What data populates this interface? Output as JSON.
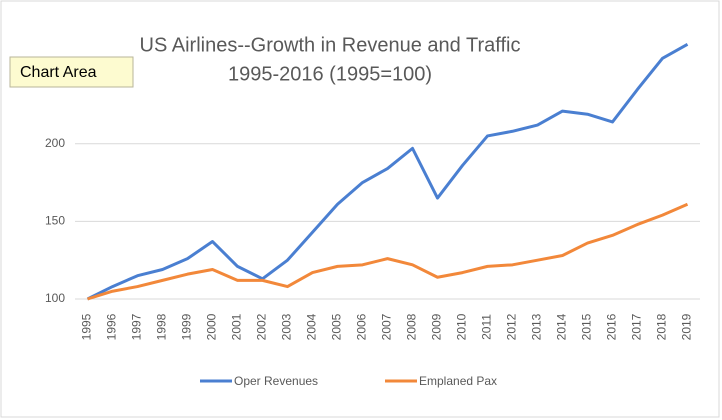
{
  "tooltip": "Chart Area",
  "chart_data": {
    "type": "line",
    "title": [
      "US Airlines--Growth in Revenue and Traffic",
      "1995-2016 (1995=100)"
    ],
    "categories": [
      "1995",
      "1996",
      "1997",
      "1998",
      "1999",
      "2000",
      "2001",
      "2002",
      "2003",
      "2004",
      "2005",
      "2006",
      "2007",
      "2008",
      "2009",
      "2010",
      "2011",
      "2012",
      "2013",
      "2014",
      "2015",
      "2016",
      "2017",
      "2018",
      "2019"
    ],
    "series": [
      {
        "name": "Oper Revenues",
        "color": "#4a7fd1",
        "values": [
          100,
          108,
          115,
          119,
          126,
          137,
          121,
          113,
          125,
          143,
          161,
          175,
          184,
          197,
          165,
          186,
          205,
          208,
          212,
          221,
          219,
          214,
          235,
          255,
          264
        ]
      },
      {
        "name": "Emplaned Pax",
        "color": "#f2883a",
        "values": [
          100,
          105,
          108,
          112,
          116,
          119,
          112,
          112,
          108,
          117,
          121,
          122,
          126,
          122,
          114,
          117,
          121,
          122,
          125,
          128,
          136,
          141,
          148,
          154,
          161
        ]
      }
    ],
    "ylim": [
      100,
      270
    ],
    "yticks": [
      100,
      150,
      200
    ],
    "grid": true,
    "legend": "bottom"
  }
}
